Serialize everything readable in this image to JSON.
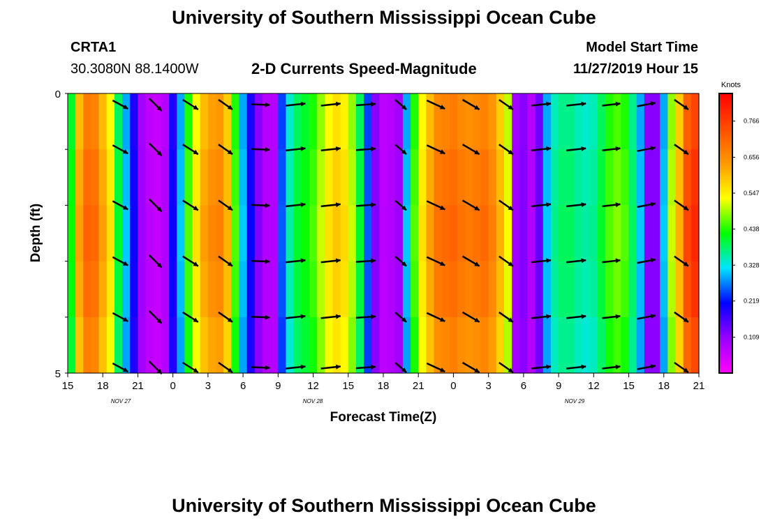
{
  "page": {
    "title_top": "University of Southern Mississippi Ocean Cube",
    "title_bottom": "University of Southern Mississippi Ocean Cube",
    "station_id": "CRTA1",
    "station_coords": "30.3080N 88.1400W",
    "plot_title": "2-D Currents Speed-Magnitude",
    "model_start_label": "Model Start Time",
    "model_start_value": "11/27/2019 Hour 15"
  },
  "chart_data": {
    "type": "heatmap",
    "title": "2-D Currents Speed-Magnitude",
    "xlabel": "Forecast Time(Z)",
    "ylabel": "Depth (ft)",
    "colorbar_label": "Knots",
    "colorbar_ticks": [
      "0.109",
      "0.219",
      "0.328",
      "0.438",
      "0.547",
      "0.656",
      "0.766"
    ],
    "colorbar_range": [
      0,
      0.85
    ],
    "ylim": [
      0,
      5
    ],
    "y_tick_labels": [
      "0",
      "5"
    ],
    "x_tick_labels": [
      "15",
      "18",
      "21",
      "0",
      "3",
      "6",
      "9",
      "12",
      "15",
      "18",
      "21",
      "0",
      "3",
      "6",
      "9",
      "12",
      "15",
      "18",
      "21"
    ],
    "day_labels": [
      "NOV 27",
      "NOV 28",
      "NOV 29"
    ],
    "speed_series": [
      0.42,
      0.62,
      0.7,
      0.69,
      0.62,
      0.55,
      0.4,
      0.3,
      0.2,
      0.1,
      0.07,
      0.06,
      0.08,
      0.2,
      0.3,
      0.45,
      0.55,
      0.62,
      0.65,
      0.66,
      0.6,
      0.45,
      0.3,
      0.2,
      0.12,
      0.08,
      0.08,
      0.25,
      0.35,
      0.4,
      0.42,
      0.45,
      0.5,
      0.55,
      0.58,
      0.56,
      0.5,
      0.4,
      0.25,
      0.12,
      0.07,
      0.08,
      0.1,
      0.3,
      0.45,
      0.55,
      0.62,
      0.68,
      0.69,
      0.7,
      0.68,
      0.67,
      0.68,
      0.69,
      0.66,
      0.6,
      0.52,
      0.1,
      0.12,
      0.08,
      0.14,
      0.3,
      0.36,
      0.38,
      0.38,
      0.36,
      0.35,
      0.36,
      0.4,
      0.45,
      0.47,
      0.45,
      0.38,
      0.3,
      0.12,
      0.12,
      0.3,
      0.5,
      0.6,
      0.74,
      0.78
    ],
    "vector_rows_depth_ft": [
      0.2,
      1.0,
      2.0,
      3.0,
      4.0,
      4.9
    ],
    "vectors": [
      {
        "t": 19.5,
        "dx": 22,
        "dy": 12
      },
      {
        "t": 22.5,
        "dx": 18,
        "dy": 18
      },
      {
        "t": 25.5,
        "dx": 22,
        "dy": 14
      },
      {
        "t": 28.5,
        "dx": 20,
        "dy": 14
      },
      {
        "t": 31.5,
        "dx": 26,
        "dy": 1
      },
      {
        "t": 34.5,
        "dx": 28,
        "dy": -3
      },
      {
        "t": 37.5,
        "dx": 28,
        "dy": -3
      },
      {
        "t": 40.5,
        "dx": 28,
        "dy": -2
      },
      {
        "t": 43.5,
        "dx": 16,
        "dy": 14
      },
      {
        "t": 46.5,
        "dx": 26,
        "dy": 12
      },
      {
        "t": 49.5,
        "dx": 24,
        "dy": 14
      },
      {
        "t": 52.5,
        "dx": 20,
        "dy": 14
      },
      {
        "t": 55.5,
        "dx": 28,
        "dy": -3
      },
      {
        "t": 58.5,
        "dx": 28,
        "dy": -3
      },
      {
        "t": 61.5,
        "dx": 26,
        "dy": -3
      },
      {
        "t": 64.5,
        "dx": 26,
        "dy": -5
      },
      {
        "t": 67.5,
        "dx": 20,
        "dy": 14
      }
    ]
  }
}
